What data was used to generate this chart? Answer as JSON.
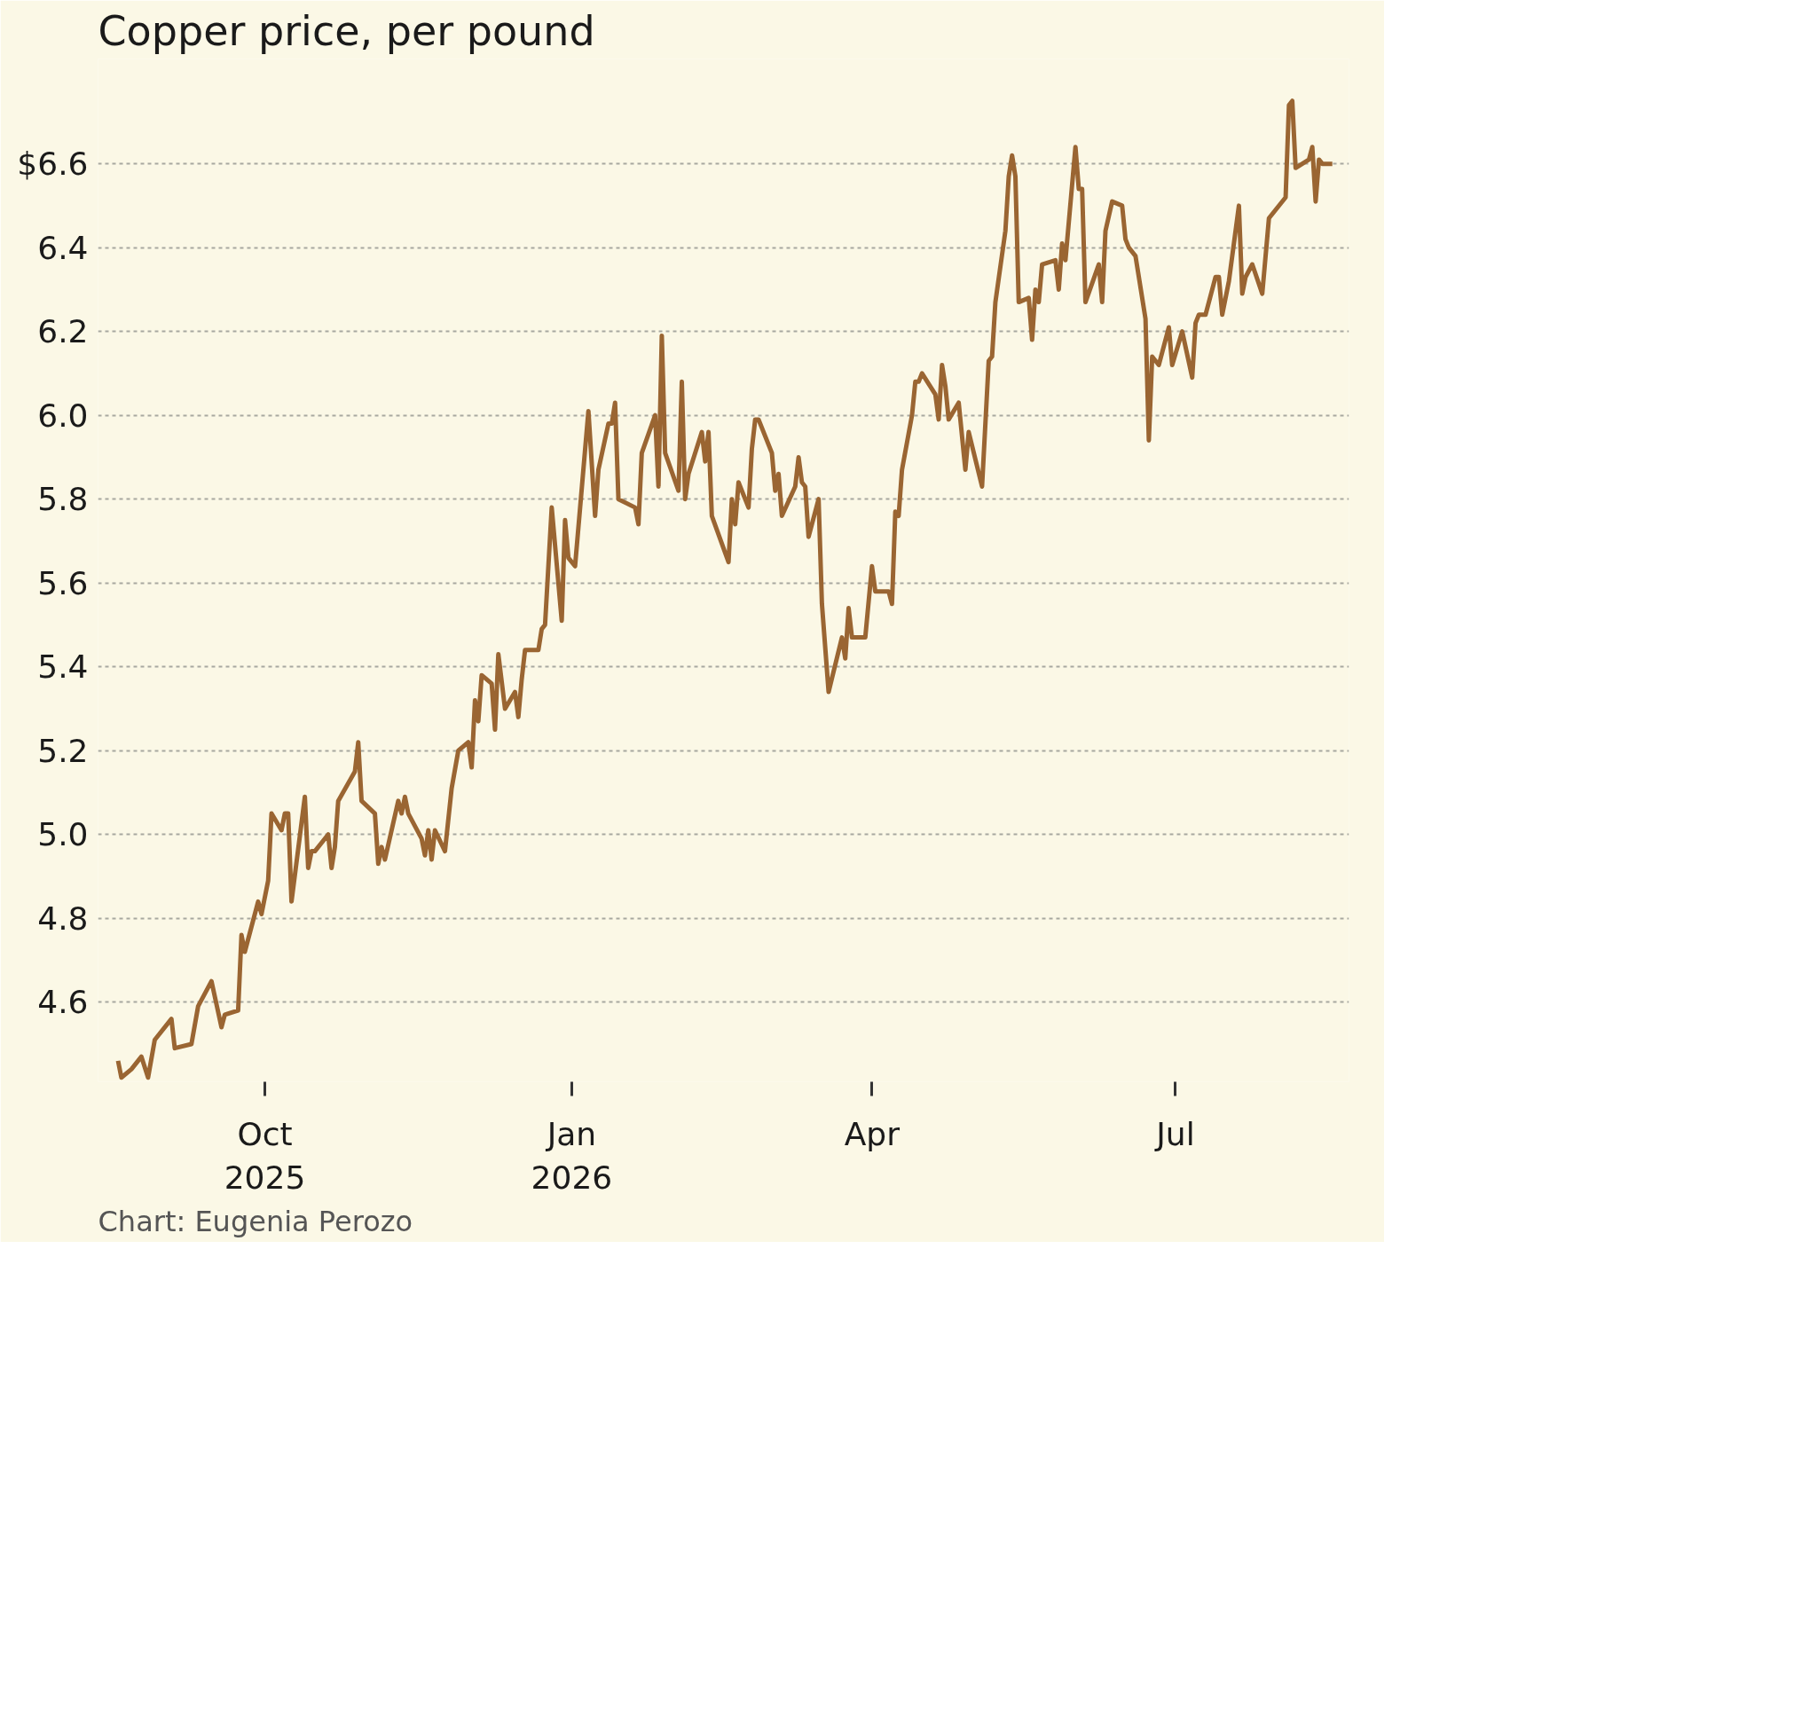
{
  "chart_data": {
    "type": "line",
    "title": "Copper price, per pound",
    "annotations": [
      "Chart: Eugenia Perozo"
    ],
    "x": [
      "2025-08-18",
      "2025-08-19",
      "2025-08-22",
      "2025-08-25",
      "2025-08-27",
      "2025-08-29",
      "2025-09-03",
      "2025-09-04",
      "2025-09-09",
      "2025-09-11",
      "2025-09-15",
      "2025-09-18",
      "2025-09-19",
      "2025-09-23",
      "2025-09-24",
      "2025-09-25",
      "2025-09-29",
      "2025-09-30",
      "2025-10-02",
      "2025-10-03",
      "2025-10-06",
      "2025-10-07",
      "2025-10-08",
      "2025-10-09",
      "2025-10-13",
      "2025-10-14",
      "2025-10-15",
      "2025-10-16",
      "2025-10-20",
      "2025-10-21",
      "2025-10-22",
      "2025-10-23",
      "2025-10-28",
      "2025-10-29",
      "2025-10-30",
      "2025-11-03",
      "2025-11-04",
      "2025-11-05",
      "2025-11-06",
      "2025-11-10",
      "2025-11-11",
      "2025-11-12",
      "2025-11-13",
      "2025-11-17",
      "2025-11-18",
      "2025-11-19",
      "2025-11-20",
      "2025-11-21",
      "2025-11-24",
      "2025-11-26",
      "2025-11-28",
      "2025-12-01",
      "2025-12-02",
      "2025-12-03",
      "2025-12-04",
      "2025-12-05",
      "2025-12-08",
      "2025-12-09",
      "2025-12-10",
      "2025-12-12",
      "2025-12-15",
      "2025-12-16",
      "2025-12-17",
      "2025-12-18",
      "2025-12-22",
      "2025-12-23",
      "2025-12-24",
      "2025-12-26",
      "2025-12-29",
      "2025-12-30",
      "2025-12-31",
      "2026-01-02",
      "2026-01-06",
      "2026-01-08",
      "2026-01-09",
      "2026-01-12",
      "2026-01-13",
      "2026-01-14",
      "2026-01-15",
      "2026-01-20",
      "2026-01-21",
      "2026-01-22",
      "2026-01-26",
      "2026-01-27",
      "2026-01-28",
      "2026-01-29",
      "2026-02-02",
      "2026-02-03",
      "2026-02-04",
      "2026-02-05",
      "2026-02-09",
      "2026-02-10",
      "2026-02-11",
      "2026-02-12",
      "2026-02-17",
      "2026-02-18",
      "2026-02-19",
      "2026-02-20",
      "2026-02-23",
      "2026-02-24",
      "2026-02-25",
      "2026-02-26",
      "2026-03-02",
      "2026-03-03",
      "2026-03-04",
      "2026-03-05",
      "2026-03-09",
      "2026-03-10",
      "2026-03-11",
      "2026-03-12",
      "2026-03-13",
      "2026-03-16",
      "2026-03-17",
      "2026-03-19",
      "2026-03-23",
      "2026-03-24",
      "2026-03-25",
      "2026-03-26",
      "2026-03-30",
      "2026-04-01",
      "2026-04-02",
      "2026-04-06",
      "2026-04-07",
      "2026-04-08",
      "2026-04-09",
      "2026-04-10",
      "2026-04-13",
      "2026-04-14",
      "2026-04-15",
      "2026-04-16",
      "2026-04-20",
      "2026-04-21",
      "2026-04-22",
      "2026-04-23",
      "2026-04-24",
      "2026-04-27",
      "2026-04-29",
      "2026-04-30",
      "2026-05-04",
      "2026-05-06",
      "2026-05-07",
      "2026-05-08",
      "2026-05-11",
      "2026-05-12",
      "2026-05-13",
      "2026-05-14",
      "2026-05-15",
      "2026-05-18",
      "2026-05-19",
      "2026-05-20",
      "2026-05-21",
      "2026-05-22",
      "2026-05-26",
      "2026-05-27",
      "2026-05-28",
      "2026-05-29",
      "2026-06-01",
      "2026-06-02",
      "2026-06-03",
      "2026-06-04",
      "2026-06-08",
      "2026-06-09",
      "2026-06-10",
      "2026-06-12",
      "2026-06-15",
      "2026-06-16",
      "2026-06-17",
      "2026-06-19",
      "2026-06-22",
      "2026-06-23",
      "2026-06-24",
      "2026-06-26",
      "2026-06-29",
      "2026-06-30",
      "2026-07-03",
      "2026-07-06",
      "2026-07-07",
      "2026-07-08",
      "2026-07-10",
      "2026-07-13",
      "2026-07-14",
      "2026-07-15",
      "2026-07-17",
      "2026-07-20",
      "2026-07-21",
      "2026-07-22",
      "2026-07-24",
      "2026-07-27",
      "2026-07-28",
      "2026-07-29",
      "2026-08-03",
      "2026-08-04",
      "2026-08-05",
      "2026-08-06",
      "2026-08-10",
      "2026-08-11",
      "2026-08-12",
      "2026-08-13",
      "2026-08-14",
      "2026-08-17"
    ],
    "series": [
      {
        "color": "#9a6532",
        "values": [
          4.46,
          4.42,
          4.44,
          4.47,
          4.42,
          4.51,
          4.56,
          4.49,
          4.5,
          4.59,
          4.65,
          4.54,
          4.57,
          4.58,
          4.76,
          4.72,
          4.84,
          4.81,
          4.89,
          5.05,
          5.01,
          5.05,
          5.05,
          4.84,
          5.09,
          4.92,
          4.96,
          4.96,
          5.0,
          4.92,
          4.97,
          5.08,
          5.15,
          5.22,
          5.08,
          5.05,
          4.93,
          4.97,
          4.94,
          5.08,
          5.05,
          5.09,
          5.05,
          4.99,
          4.95,
          5.01,
          4.94,
          5.01,
          4.96,
          5.11,
          5.2,
          5.22,
          5.16,
          5.32,
          5.27,
          5.38,
          5.36,
          5.25,
          5.43,
          5.3,
          5.34,
          5.28,
          5.37,
          5.44,
          5.44,
          5.49,
          5.5,
          5.78,
          5.51,
          5.75,
          5.66,
          5.64,
          6.01,
          5.76,
          5.87,
          5.98,
          5.98,
          6.03,
          5.8,
          5.78,
          5.74,
          5.91,
          6.0,
          5.83,
          6.19,
          5.91,
          5.82,
          6.08,
          5.8,
          5.86,
          5.96,
          5.89,
          5.96,
          5.76,
          5.65,
          5.8,
          5.74,
          5.84,
          5.78,
          5.92,
          5.99,
          5.99,
          5.91,
          5.82,
          5.86,
          5.76,
          5.83,
          5.9,
          5.84,
          5.83,
          5.71,
          5.8,
          5.55,
          5.34,
          5.47,
          5.42,
          5.54,
          5.47,
          5.47,
          5.64,
          5.58,
          5.58,
          5.55,
          5.77,
          5.76,
          5.87,
          6.0,
          6.08,
          6.08,
          6.1,
          6.05,
          5.99,
          6.12,
          6.07,
          5.99,
          6.03,
          5.87,
          5.96,
          5.83,
          6.13,
          6.14,
          6.27,
          6.44,
          6.57,
          6.62,
          6.57,
          6.27,
          6.28,
          6.18,
          6.3,
          6.27,
          6.36,
          6.37,
          6.3,
          6.41,
          6.37,
          6.64,
          6.54,
          6.54,
          6.27,
          6.36,
          6.27,
          6.44,
          6.51,
          6.5,
          6.42,
          6.4,
          6.38,
          6.23,
          5.94,
          6.14,
          6.12,
          6.21,
          6.12,
          6.2,
          6.09,
          6.22,
          6.24,
          6.24,
          6.33,
          6.33,
          6.24,
          6.32,
          6.5,
          6.29,
          6.33,
          6.36,
          6.29,
          6.38,
          6.47,
          6.52,
          6.74,
          6.75,
          6.59,
          6.61,
          6.64,
          6.51,
          6.61,
          6.6,
          6.6
        ]
      }
    ],
    "xlim": [
      "2025-08-12",
      "2026-08-22"
    ],
    "xticks": [
      {
        "value": "2025-10-01",
        "label": "Oct\n2025"
      },
      {
        "value": "2026-01-01",
        "label": "Jan\n2026"
      },
      {
        "value": "2026-04-01",
        "label": "Apr"
      },
      {
        "value": "2026-07-01",
        "label": "Jul"
      }
    ],
    "ylim": [
      4.41,
      6.85
    ],
    "yticks": [
      {
        "value": 4.6,
        "label": "4.6"
      },
      {
        "value": 4.8,
        "label": "4.8"
      },
      {
        "value": 5.0,
        "label": "5.0"
      },
      {
        "value": 5.2,
        "label": "5.2"
      },
      {
        "value": 5.4,
        "label": "5.4"
      },
      {
        "value": 5.6,
        "label": "5.6"
      },
      {
        "value": 5.8,
        "label": "5.8"
      },
      {
        "value": 6.0,
        "label": "6.0"
      },
      {
        "value": 6.2,
        "label": "6.2"
      },
      {
        "value": 6.4,
        "label": "6.4"
      },
      {
        "value": 6.6,
        "label": "$6.6"
      }
    ],
    "grid": "y",
    "line_style": "solid"
  }
}
